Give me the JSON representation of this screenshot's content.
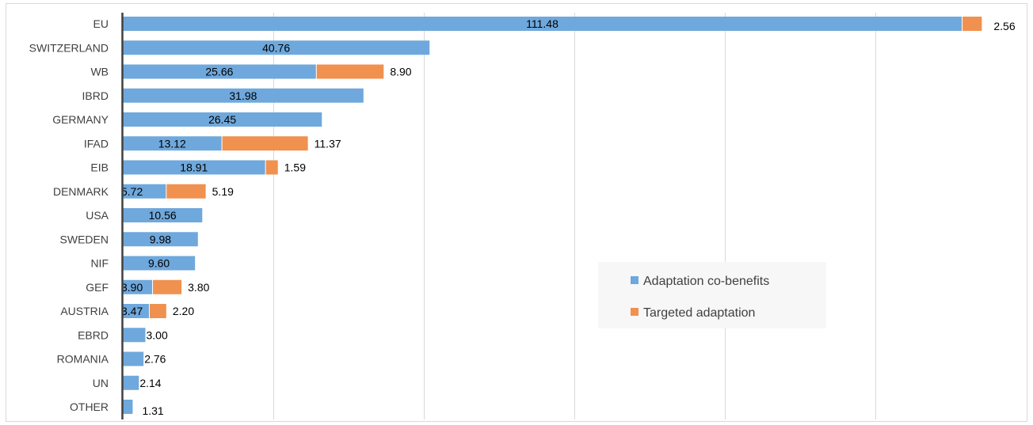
{
  "chart_data": {
    "type": "bar",
    "orientation": "horizontal",
    "stacked": true,
    "categories": [
      "EU",
      "SWITZERLAND",
      "WB",
      "IBRD",
      "GERMANY",
      "IFAD",
      "EIB",
      "DENMARK",
      "USA",
      "SWEDEN",
      "NIF",
      "GEF",
      "AUSTRIA",
      "EBRD",
      "ROMANIA",
      "UN",
      "OTHER"
    ],
    "series": [
      {
        "name": "Adaptation co-benefits",
        "color": "#6FA8DC",
        "values": [
          111.48,
          40.76,
          25.66,
          31.98,
          26.45,
          13.12,
          18.91,
          5.72,
          10.56,
          9.98,
          9.6,
          3.9,
          3.47,
          3.0,
          2.76,
          2.14,
          1.31
        ],
        "labels": [
          "111.48",
          "40.76",
          "25.66",
          "31.98",
          "26.45",
          "13.12",
          "18.91",
          "5.72",
          "10.56",
          "9.98",
          "9.60",
          "3.90",
          "3.47",
          "3.00",
          "2.76",
          "2.14",
          "1.31"
        ]
      },
      {
        "name": "Targeted adaptation",
        "color": "#F0914F",
        "values": [
          2.56,
          0,
          8.9,
          0,
          0,
          11.37,
          1.59,
          5.19,
          0,
          0,
          0,
          3.8,
          2.2,
          0,
          0,
          0,
          0
        ],
        "labels": [
          "2.56",
          "",
          "8.90",
          "",
          "",
          "11.37",
          "1.59",
          "5.19",
          "",
          "",
          "",
          "3.80",
          "2.20",
          "",
          "",
          "",
          ""
        ]
      }
    ],
    "xlim": [
      0,
      120
    ],
    "gridlines_x": [
      20,
      40,
      60,
      80,
      100
    ],
    "grid": true,
    "legend": "center-right",
    "title": "",
    "xlabel": "",
    "ylabel": ""
  }
}
